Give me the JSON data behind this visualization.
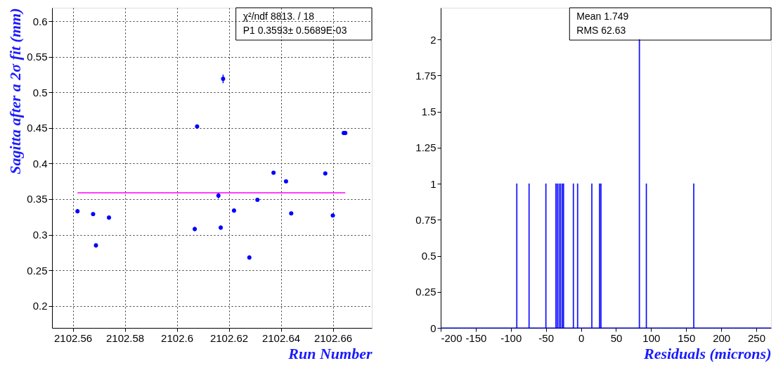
{
  "chart_data": [
    {
      "type": "scatter",
      "xlabel": "Run Number",
      "ylabel": "Sagitta after a 2σ fit (mm)",
      "xlim": [
        2102.552,
        2102.675
      ],
      "xticks": [
        2102.56,
        2102.58,
        2102.6,
        2102.62,
        2102.64,
        2102.66
      ],
      "ylim": [
        0.169,
        0.619
      ],
      "yticks": [
        0.2,
        0.25,
        0.3,
        0.35,
        0.4,
        0.45,
        0.5,
        0.55,
        0.6
      ],
      "grid": true,
      "annotations": [
        "χ²/ndf 8813. / 18",
        "P1 0.3593± 0.5689E-03"
      ],
      "series": [
        {
          "color": "#0000ff",
          "marker": "circle",
          "x": [
            2102.5618,
            2102.5678,
            2102.5689,
            2102.5739,
            2102.6069,
            2102.6078,
            2102.616,
            2102.6169,
            2102.6178,
            2102.622,
            2102.6279,
            2102.631,
            2102.6372,
            2102.642,
            2102.644,
            2102.6571,
            2102.66,
            2102.6642,
            2102.6648
          ],
          "values": [
            0.333,
            0.329,
            0.285,
            0.324,
            0.308,
            0.452,
            0.355,
            0.31,
            0.519,
            0.334,
            0.268,
            0.349,
            0.387,
            0.375,
            0.33,
            0.386,
            0.327,
            0.443,
            0.443
          ],
          "errors": [
            0.003,
            0.002,
            0.003,
            0.003,
            0.003,
            0.003,
            0.004,
            0.003,
            0.006,
            0.003,
            0.003,
            0.002,
            0.002,
            0.002,
            0.002,
            0.002,
            0.002,
            0.002,
            0.002
          ]
        },
        {
          "type": "line",
          "marker": "none",
          "color": "#ff00ff",
          "x": [
            2102.5618,
            2102.6648
          ],
          "values": [
            0.359,
            0.359
          ]
        }
      ]
    },
    {
      "type": "histogram",
      "xlabel": "Residuals (microns)",
      "xlim": [
        -200,
        271
      ],
      "xticks": [
        -200,
        -150,
        -100,
        -50,
        0,
        50,
        100,
        150,
        200,
        250
      ],
      "ylim": [
        0,
        2.22
      ],
      "yticks": [
        0,
        0.25,
        0.5,
        0.75,
        1,
        1.25,
        1.5,
        1.75,
        2
      ],
      "color": "#0000ff",
      "annotations": [
        "Mean 1.749",
        "RMS 62.63"
      ],
      "bins": [
        -200,
        -92,
        -91,
        -74.5,
        -73.5,
        -50.5,
        -49.5,
        -36.3,
        -35.3,
        -34.2,
        -33.2,
        -31.7,
        -30.7,
        -29.6,
        -28.6,
        -27.1,
        -26.1,
        -25.4,
        -24.4,
        -11.3,
        -10.3,
        -5.3,
        -4.3,
        15,
        16,
        26,
        27,
        28,
        29,
        82.8,
        83.8,
        92.7,
        93.7,
        160.3,
        161.3,
        271
      ],
      "values": [
        0,
        1,
        0,
        1,
        0,
        1,
        0,
        1,
        0,
        1,
        0,
        1,
        0,
        1,
        0,
        1,
        0,
        1,
        0,
        1,
        0,
        1,
        0,
        1,
        0,
        1,
        0,
        1,
        0,
        2,
        0,
        1,
        0,
        1,
        0
      ]
    }
  ]
}
